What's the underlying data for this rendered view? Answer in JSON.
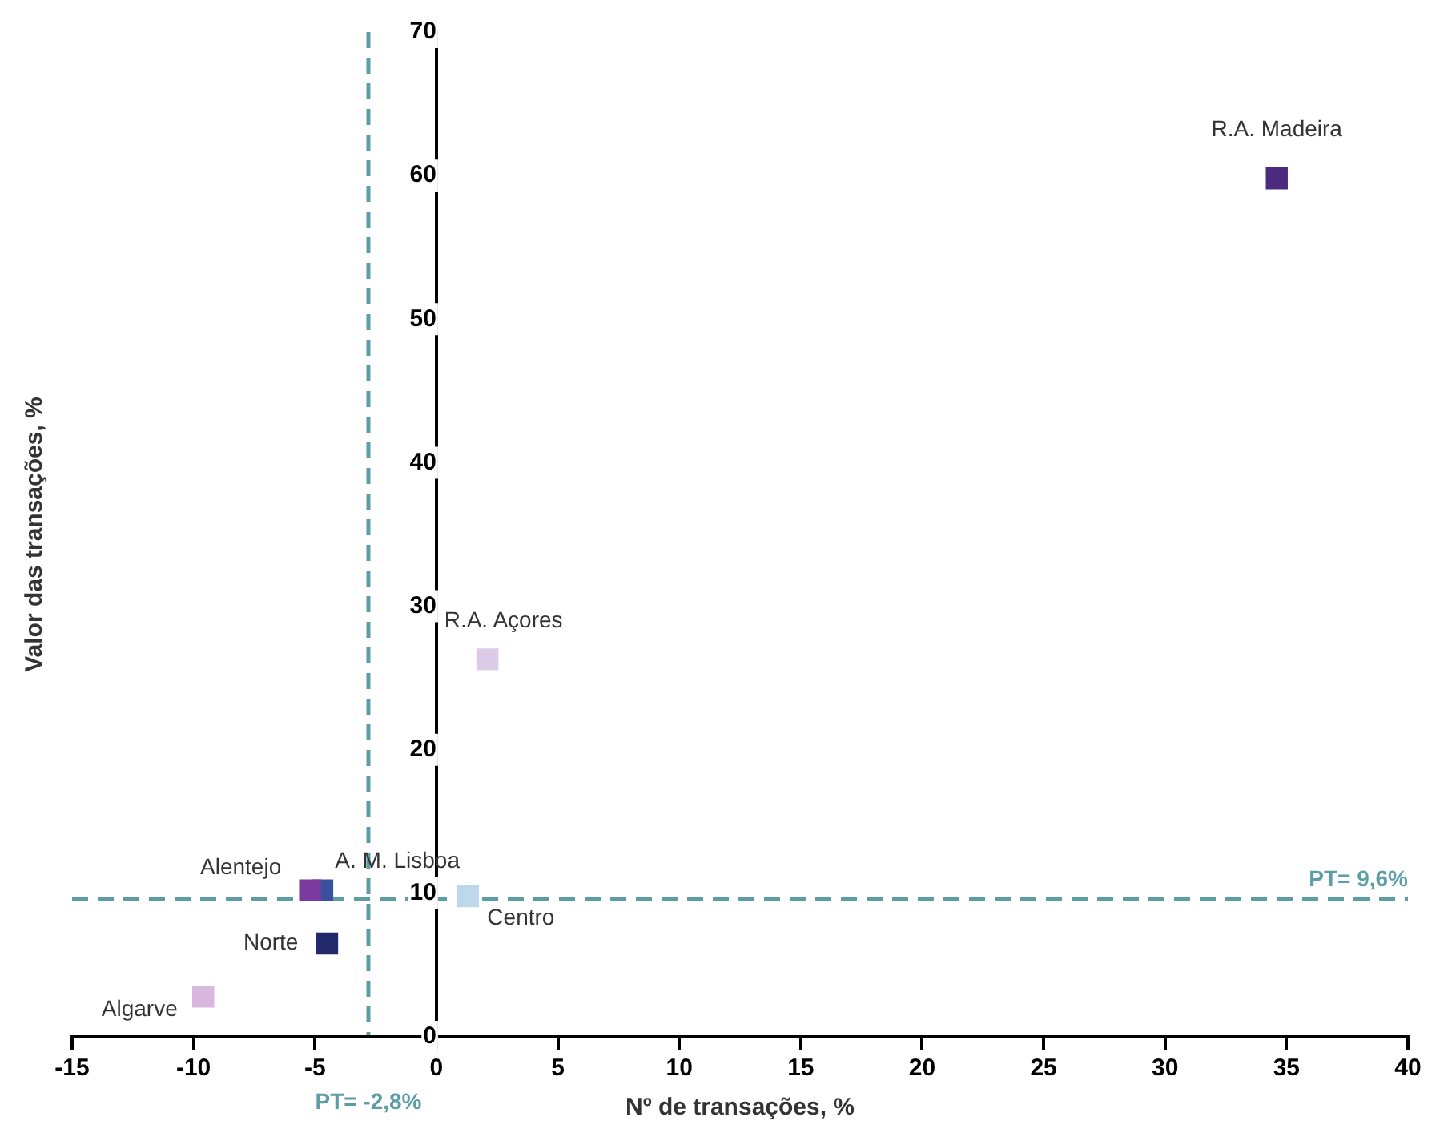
{
  "chart_data": {
    "type": "scatter",
    "xlabel": "Nº de transações, %",
    "ylabel": "Valor das transações, %",
    "xlim": [
      -15,
      40
    ],
    "xticks": [
      -15,
      -10,
      -5,
      0,
      5,
      10,
      15,
      20,
      25,
      30,
      35,
      40
    ],
    "ylim": [
      0,
      70
    ],
    "yticks": [
      0,
      10,
      20,
      30,
      40,
      50,
      60,
      70
    ],
    "grid": false,
    "legend": false,
    "marker": "square",
    "series": [
      {
        "name": "R.A. Madeira",
        "color": "#4b2a7f",
        "x": [
          34.6
        ],
        "values": [
          59.8
        ]
      },
      {
        "name": "R.A. Açores",
        "color": "#dccbe6",
        "x": [
          2.1
        ],
        "values": [
          26.3
        ]
      },
      {
        "name": "Centro",
        "color": "#bcd8ea",
        "x": [
          1.3
        ],
        "values": [
          9.8
        ]
      },
      {
        "name": "Alentejo",
        "color": "#7b3a9e",
        "x": [
          -5.2
        ],
        "values": [
          10.2
        ]
      },
      {
        "name": "A. M. Lisboa",
        "color": "#3a4f9e",
        "x": [
          -4.7
        ],
        "values": [
          10.2
        ]
      },
      {
        "name": "Norte",
        "color": "#222a6b",
        "x": [
          -4.5
        ],
        "values": [
          6.5
        ]
      },
      {
        "name": "Algarve",
        "color": "#d8b8de",
        "x": [
          -9.6
        ],
        "values": [
          2.8
        ]
      }
    ],
    "ref_lines": [
      {
        "axis": "x",
        "value": -2.8,
        "label": "PT= -2,8%",
        "color": "#5b9ea6",
        "line_style": "dashed"
      },
      {
        "axis": "y",
        "value": 9.6,
        "label": "PT= 9,6%",
        "color": "#5b9ea6",
        "line_style": "dashed"
      }
    ]
  }
}
